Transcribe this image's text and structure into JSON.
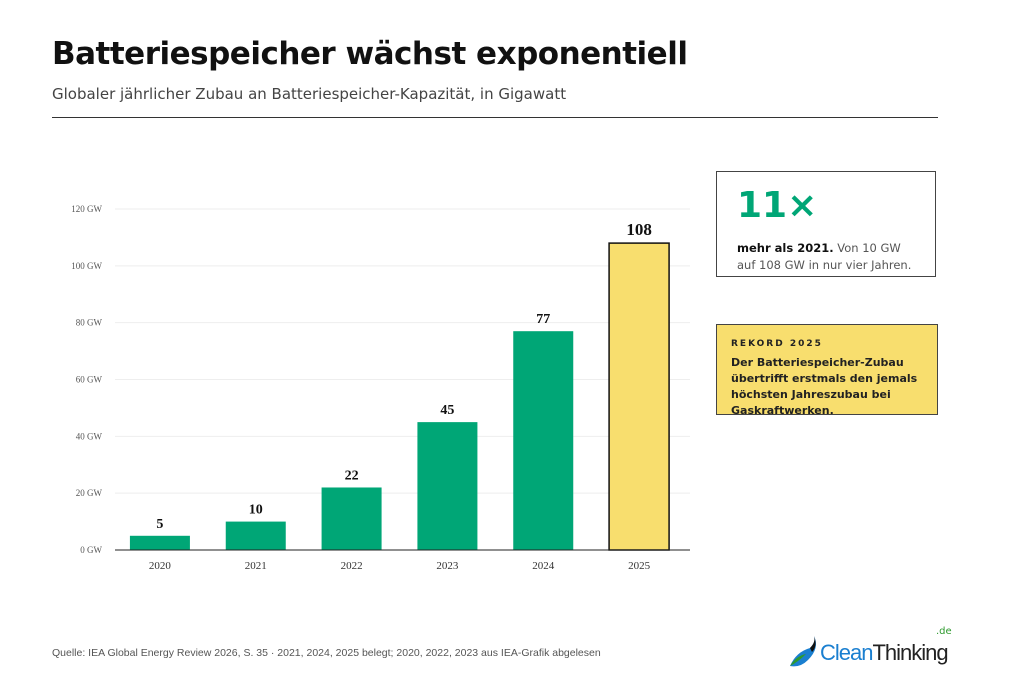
{
  "header": {
    "title": "Batteriespeicher wächst exponentiell",
    "subtitle": "Globaler jährlicher Zubau an Batteriespeicher-Kapazität, in Gigawatt"
  },
  "chart_data": {
    "type": "bar",
    "categories": [
      "2020",
      "2021",
      "2022",
      "2023",
      "2024",
      "2025"
    ],
    "values": [
      5,
      10,
      22,
      45,
      77,
      108
    ],
    "data_labels": [
      "5",
      "10",
      "22",
      "45",
      "77",
      "108"
    ],
    "ylim": [
      0,
      120
    ],
    "yticks": [
      0,
      20,
      40,
      60,
      80,
      100,
      120
    ],
    "ytick_labels": [
      "0 GW",
      "20 GW",
      "40 GW",
      "60 GW",
      "80 GW",
      "100 GW",
      "120 GW"
    ],
    "grid": true,
    "colors": {
      "bar": "#00a676",
      "highlight": "#f8de6e",
      "highlight_border": "#111111"
    }
  },
  "callout1": {
    "big": "11×",
    "bold": "mehr als 2021.",
    "text": " Von 10 GW auf 108 GW in nur vier Jahren."
  },
  "callout2": {
    "kicker": "REKORD 2025",
    "text": "Der Batteriespeicher-Zubau übertrifft erstmals den jemals höchsten Jahreszubau bei Gaskraftwerken."
  },
  "footer": {
    "source": "Quelle: IEA Global Energy Review 2026, S. 35 · 2021, 2024, 2025 belegt; 2020, 2022, 2023 aus IEA-Grafik abgelesen",
    "logo_main": "Clean",
    "logo_second": "Thinking",
    "logo_tld": ".de"
  }
}
